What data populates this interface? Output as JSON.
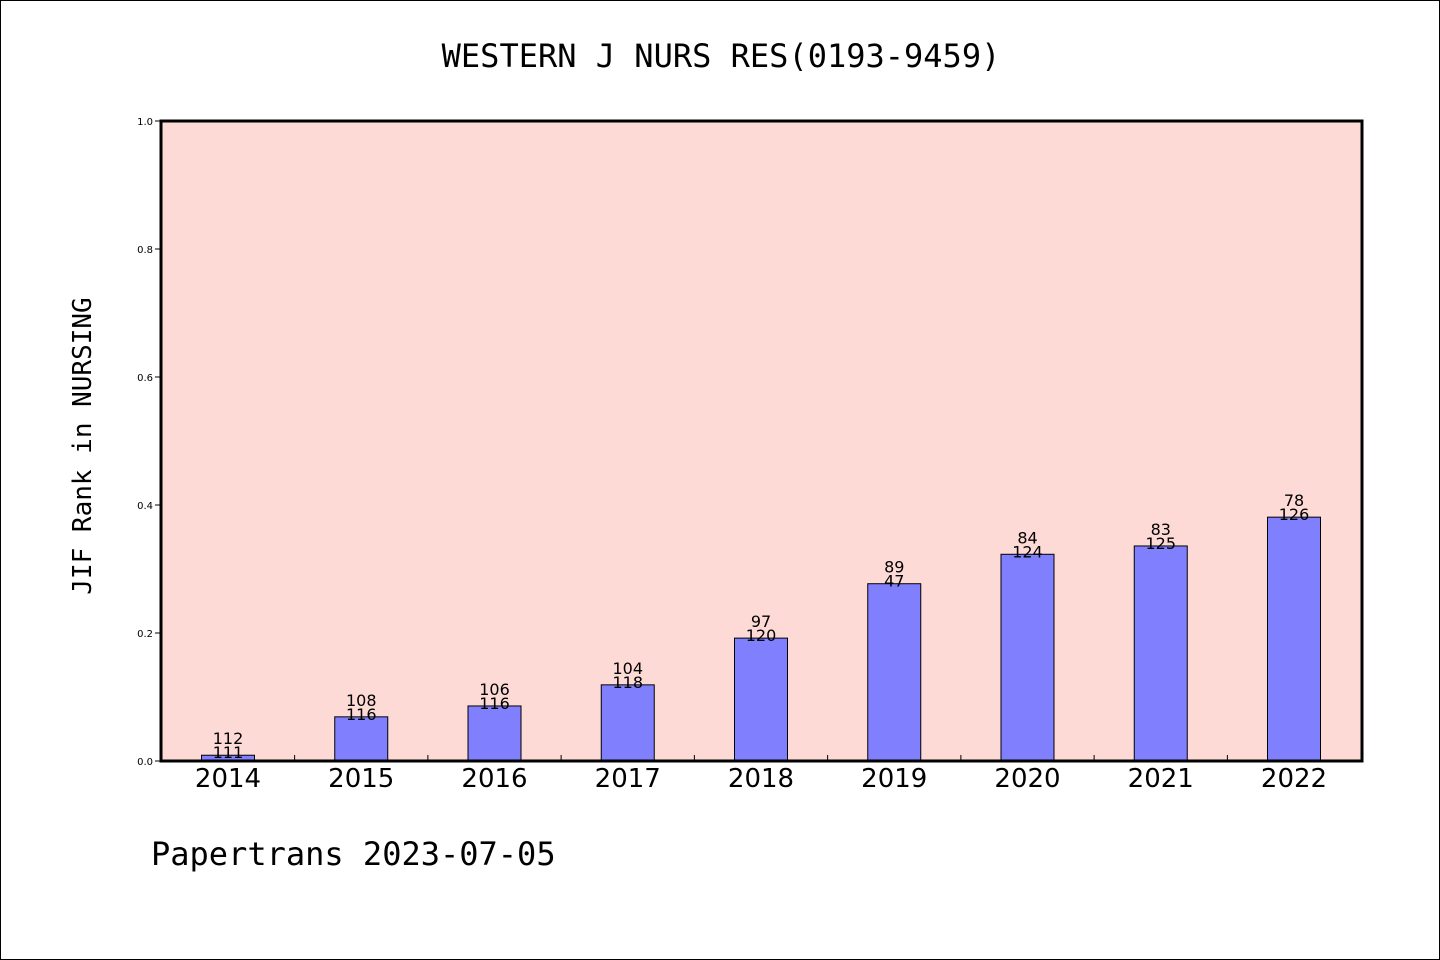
{
  "footer": "Papertrans 2023-07-05",
  "colors": {
    "plot_bg": "#fddad6",
    "bar": "#8080ff"
  },
  "chart_data": {
    "type": "bar",
    "title": "WESTERN J NURS RES(0193-9459)",
    "ylabel": "JIF Rank in NURSING",
    "xlabel": "",
    "ylim": [
      0,
      1.0
    ],
    "yticks": [
      "0.0",
      "0.2",
      "0.4",
      "0.6",
      "0.8",
      "1.0"
    ],
    "grid": false,
    "categories": [
      "2014",
      "2015",
      "2016",
      "2017",
      "2018",
      "2019",
      "2020",
      "2021",
      "2022"
    ],
    "values": [
      0.009,
      0.069,
      0.086,
      0.119,
      0.192,
      0.277,
      0.323,
      0.336,
      0.381
    ],
    "labels_top": [
      "112",
      "108",
      "106",
      "104",
      "97",
      "89",
      "84",
      "83",
      "78"
    ],
    "labels_bottom": [
      "111",
      "116",
      "116",
      "118",
      "120",
      "47",
      "124",
      "125",
      "126"
    ]
  }
}
